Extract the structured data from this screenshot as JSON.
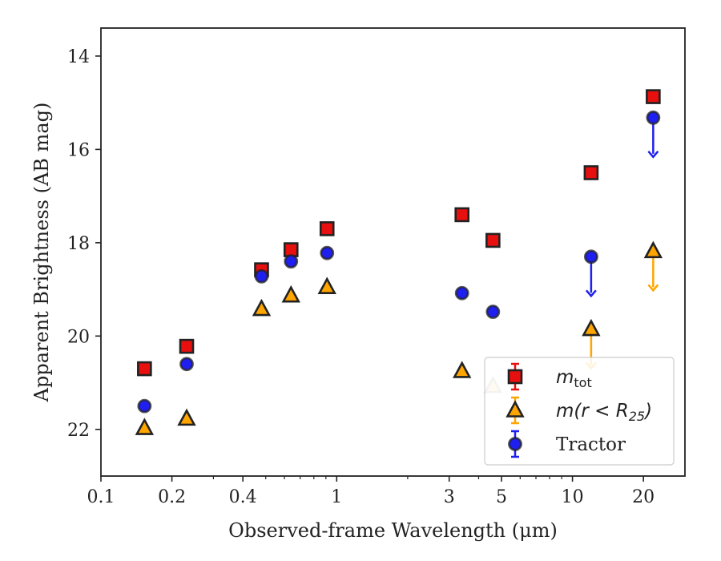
{
  "chart_data": {
    "type": "scatter",
    "xlabel": "Observed-frame Wavelength (μm)",
    "ylabel": "Apparent Brightness (AB mag)",
    "x_scale": "log",
    "xlim": [
      0.1,
      30
    ],
    "ylim": [
      23,
      13.4
    ],
    "y_inverted": true,
    "x_ticks": [
      0.1,
      0.2,
      0.4,
      1,
      3,
      5,
      10,
      20
    ],
    "x_tick_labels": [
      "0.1",
      "0.2",
      "0.4",
      "1",
      "3",
      "5",
      "10",
      "20"
    ],
    "y_ticks": [
      14,
      16,
      18,
      20,
      22
    ],
    "y_tick_labels": [
      "14",
      "16",
      "18",
      "20",
      "22"
    ],
    "legend_position": "lower-right",
    "series": [
      {
        "name": "m_tot",
        "legend_label": "m",
        "legend_sub": "tot",
        "marker": "square",
        "color": "#e8100e",
        "x": [
          0.153,
          0.231,
          0.48,
          0.64,
          0.91,
          3.4,
          4.6,
          12.0,
          22.0
        ],
        "y": [
          20.7,
          20.22,
          18.58,
          18.15,
          17.7,
          17.4,
          17.95,
          16.5,
          14.87
        ],
        "upper_limit": [
          false,
          false,
          false,
          false,
          false,
          false,
          false,
          false,
          false
        ]
      },
      {
        "name": "m(r < R25)",
        "legend_label": "m(r < R",
        "legend_sub": "25",
        "legend_suffix": ")",
        "marker": "triangle",
        "color": "#ffa500",
        "x": [
          0.153,
          0.231,
          0.48,
          0.64,
          0.91,
          3.4,
          4.6,
          12.0,
          22.0
        ],
        "y": [
          21.97,
          21.77,
          19.42,
          19.13,
          18.95,
          20.75,
          21.07,
          19.85,
          18.18
        ],
        "upper_limit": [
          false,
          false,
          false,
          false,
          false,
          false,
          false,
          true,
          true
        ],
        "faded": [
          false,
          false,
          false,
          false,
          false,
          false,
          true,
          false,
          false
        ]
      },
      {
        "name": "Tractor",
        "marker": "circle",
        "color": "#1f1ff0",
        "x": [
          0.153,
          0.231,
          0.48,
          0.64,
          0.91,
          3.4,
          4.6,
          12.0,
          22.0
        ],
        "y": [
          21.5,
          20.6,
          18.72,
          18.4,
          18.22,
          19.08,
          19.48,
          18.3,
          15.32
        ],
        "upper_limit": [
          false,
          false,
          false,
          false,
          false,
          false,
          false,
          true,
          true
        ]
      }
    ],
    "colors": {
      "marker_edge": "#222222",
      "axis": "#222222"
    }
  }
}
